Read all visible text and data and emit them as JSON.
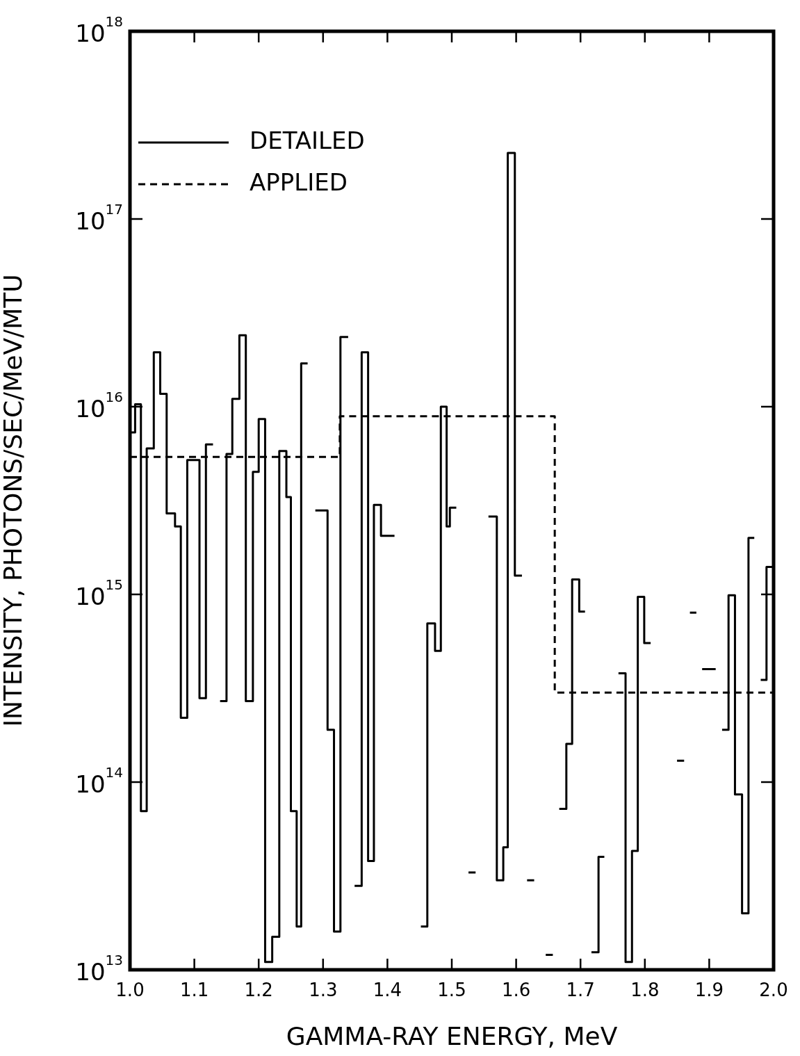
{
  "chart_data": {
    "type": "step",
    "xlabel": "GAMMA-RAY ENERGY, MeV",
    "ylabel": "INTENSITY, PHOTONS/SEC/MeV/MTU",
    "log": "y",
    "grid": false,
    "legend": "top left",
    "xlim": [
      1.0,
      2.0
    ],
    "xticks": [
      {
        "value": 1.0,
        "label": "1.0"
      },
      {
        "value": 1.1,
        "label": "1.1"
      },
      {
        "value": 1.2,
        "label": "1.2"
      },
      {
        "value": 1.3,
        "label": "1.3"
      },
      {
        "value": 1.4,
        "label": "1.4"
      },
      {
        "value": 1.5,
        "label": "1.5"
      },
      {
        "value": 1.6,
        "label": "1.6"
      },
      {
        "value": 1.7,
        "label": "1.7"
      },
      {
        "value": 1.8,
        "label": "1.8"
      },
      {
        "value": 1.9,
        "label": "1.9"
      },
      {
        "value": 2.0,
        "label": "2.0"
      }
    ],
    "ylim": [
      10000000000000.0,
      1e+18
    ],
    "yticks": [
      {
        "value": 10000000000000.0,
        "label": "10$^{13}$"
      },
      {
        "value": 100000000000000.0,
        "label": "10$^{14}$"
      },
      {
        "value": 1000000000000000.0,
        "label": "10$^{15}$"
      },
      {
        "value": 1e+16,
        "label": "10$^{16}$"
      },
      {
        "value": 1e+17,
        "label": "10$^{17}$"
      },
      {
        "value": 1e+18,
        "label": "10$^{18}$"
      }
    ],
    "series": [
      {
        "name": "DETAILED",
        "color": "#000000",
        "line_style": "solid",
        "x": [
          1.0,
          1.008,
          1.017,
          1.026,
          1.037,
          1.047,
          1.057,
          1.07,
          1.079,
          1.089,
          1.108,
          1.118,
          1.129,
          1.14,
          1.15,
          1.159,
          1.17,
          1.18,
          1.191,
          1.2,
          1.21,
          1.221,
          1.232,
          1.243,
          1.25,
          1.259,
          1.266,
          1.276,
          1.288,
          1.307,
          1.317,
          1.327,
          1.339,
          1.349,
          1.36,
          1.37,
          1.379,
          1.39,
          1.411,
          1.452,
          1.462,
          1.474,
          1.483,
          1.492,
          1.497,
          1.507,
          1.526,
          1.537,
          1.557,
          1.57,
          1.58,
          1.587,
          1.598,
          1.609,
          1.617,
          1.628,
          1.646,
          1.657,
          1.667,
          1.678,
          1.687,
          1.698,
          1.707,
          1.717,
          1.728,
          1.737,
          1.759,
          1.77,
          1.78,
          1.789,
          1.799,
          1.809,
          1.85,
          1.861,
          1.87,
          1.88,
          1.889,
          1.91,
          1.92,
          1.93,
          1.94,
          1.951,
          1.961,
          1.97,
          1.98,
          1.989,
          2.0
        ],
        "values": [
          7300000000000000.0,
          1.03e+16,
          70000000000000.0,
          6000000000000000.0,
          1.95e+16,
          1.17e+16,
          2700000000000000.0,
          2300000000000000.0,
          220000000000000.0,
          5200000000000000.0,
          280000000000000.0,
          6300000000000000.0,
          null,
          270000000000000.0,
          5600000000000000.0,
          1.1e+16,
          2.4e+16,
          270000000000000.0,
          4500000000000000.0,
          8600000000000000.0,
          11000000000000.0,
          15000000000000.0,
          5800000000000000.0,
          3300000000000000.0,
          70000000000000.0,
          17000000000000.0,
          1.7e+16,
          null,
          2800000000000000.0,
          190000000000000.0,
          16000000000000.0,
          2.35e+16,
          null,
          28000000000000.0,
          1.95e+16,
          38000000000000.0,
          3000000000000000.0,
          2050000000000000.0,
          null,
          17000000000000.0,
          700000000000000.0,
          500000000000000.0,
          1e+16,
          2300000000000000.0,
          2900000000000000.0,
          null,
          33000000000000.0,
          null,
          2600000000000000.0,
          30000000000000.0,
          45000000000000.0,
          2.25e+17,
          1260000000000000.0,
          null,
          30000000000000.0,
          null,
          12000000000000.0,
          null,
          72000000000000.0,
          160000000000000.0,
          1200000000000000.0,
          810000000000000.0,
          null,
          12400000000000.0,
          40000000000000.0,
          null,
          380000000000000.0,
          11000000000000.0,
          43000000000000.0,
          970000000000000.0,
          550000000000000.0,
          null,
          130000000000000.0,
          null,
          800000000000000.0,
          null,
          400000000000000.0,
          null,
          190000000000000.0,
          990000000000000.0,
          86000000000000.0,
          20000000000000.0,
          2000000000000000.0,
          null,
          350000000000000.0,
          1400000000000000.0,
          1400000000000000.0
        ]
      },
      {
        "name": "APPLIED",
        "color": "#000000",
        "line_style": "dashed",
        "x": [
          1.0,
          1.326,
          1.66,
          2.0
        ],
        "values": [
          5400000000000000.0,
          8900000000000000.0,
          300000000000000.0,
          300000000000000.0
        ]
      }
    ]
  }
}
